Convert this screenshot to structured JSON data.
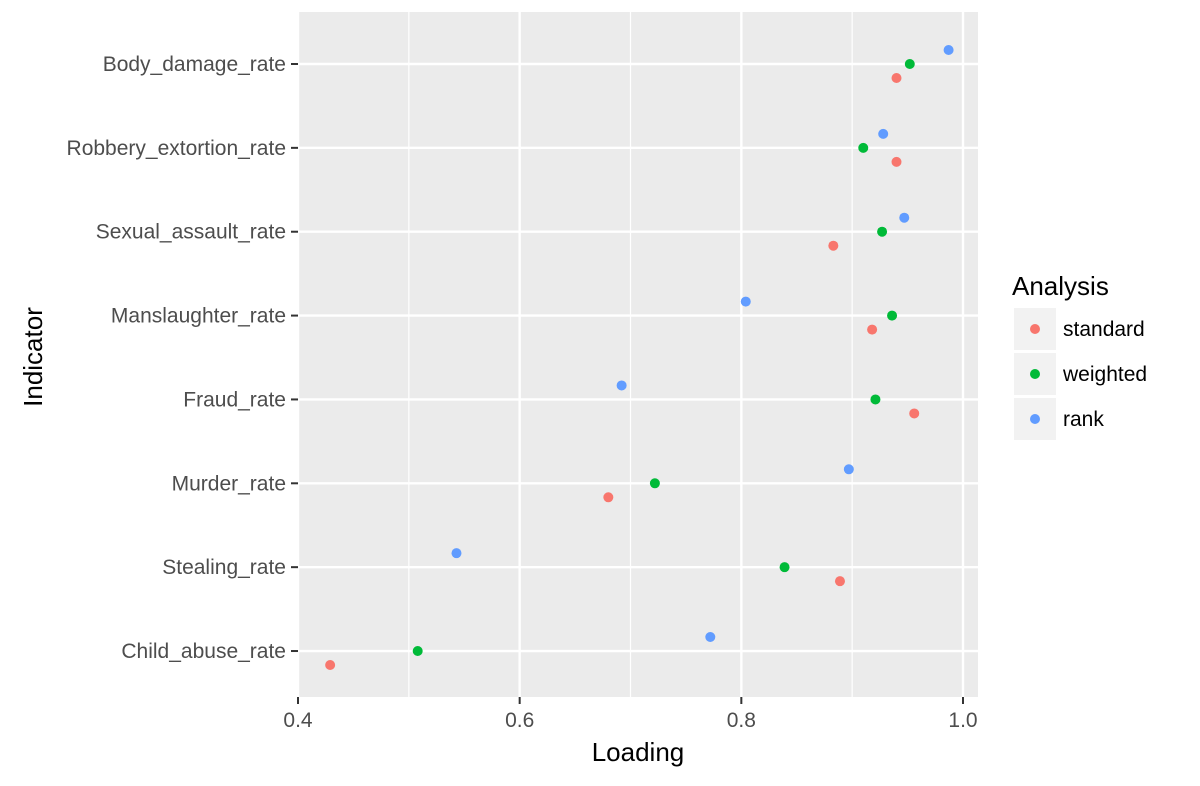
{
  "chart_data": {
    "type": "scatter",
    "title": "",
    "xlabel": "Loading",
    "ylabel": "Indicator",
    "xlim": [
      0.4,
      1.0
    ],
    "x_ticks": [
      0.4,
      0.6,
      0.8,
      1.0
    ],
    "x_tick_labels": [
      "0.4",
      "0.6",
      "0.8",
      "1.0"
    ],
    "categories": [
      "Body_damage_rate",
      "Robbery_extortion_rate",
      "Sexual_assault_rate",
      "Manslaughter_rate",
      "Fraud_rate",
      "Murder_rate",
      "Stealing_rate",
      "Child_abuse_rate"
    ],
    "grid": true,
    "legend": {
      "title": "Analysis",
      "placement": "right"
    },
    "series": [
      {
        "name": "standard",
        "color": "#F8766D",
        "values": [
          0.94,
          0.94,
          0.883,
          0.918,
          0.956,
          0.68,
          0.889,
          0.429
        ]
      },
      {
        "name": "weighted",
        "color": "#00BA38",
        "values": [
          0.952,
          0.91,
          0.927,
          0.936,
          0.921,
          0.722,
          0.839,
          0.508
        ]
      },
      {
        "name": "rank",
        "color": "#619CFF",
        "values": [
          0.987,
          0.928,
          0.947,
          0.804,
          0.692,
          0.897,
          0.543,
          0.772
        ]
      }
    ]
  }
}
